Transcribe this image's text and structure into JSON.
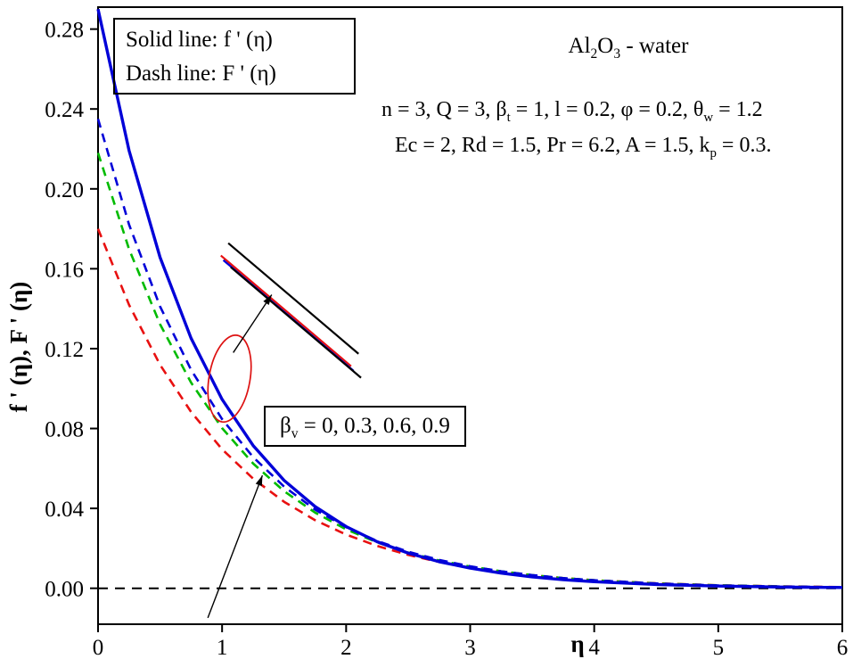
{
  "figure": {
    "background": "#ffffff"
  },
  "annotations": {
    "legend_line1": "Solid line: f ' (η)",
    "legend_line2": "Dash  line: F ' (η)",
    "fluid_label": "Al_{2}O_{3} - water",
    "params_line1": "n = 3, Q = 3, β_{t} = 1, l = 0.2, φ = 0.2, θ_{w} = 1.2",
    "params_line2": "Ec = 2, Rd = 1.5, Pr = 6.2, A = 1.5, k_{p} = 0.3.",
    "beta_label": "β_{v} = 0, 0.3, 0.6, 0.9"
  },
  "chart_data": {
    "type": "line",
    "title": "",
    "xlabel": "η",
    "ylabel": "f ' (η), F ' (η)",
    "x_range": [
      0,
      6
    ],
    "y_range": [
      -0.018,
      0.291
    ],
    "grid": false,
    "x_ticks": {
      "values": [
        0,
        1,
        2,
        3,
        4,
        5,
        6
      ],
      "labels": [
        "0",
        "1",
        "2",
        "3",
        "4",
        "5",
        "6"
      ]
    },
    "y_ticks": {
      "values": [
        0.0,
        0.04,
        0.08,
        0.12,
        0.16,
        0.2,
        0.24,
        0.28
      ],
      "labels": [
        "0.00",
        "0.04",
        "0.08",
        "0.12",
        "0.16",
        "0.20",
        "0.24",
        "0.28"
      ]
    },
    "x": [
      0,
      0.25,
      0.5,
      0.75,
      1,
      1.25,
      1.5,
      1.75,
      2,
      2.25,
      2.5,
      2.75,
      3,
      3.25,
      3.5,
      3.75,
      4,
      4.5,
      5,
      5.5,
      6
    ],
    "series": [
      {
        "name": "F-prime-dash-red",
        "legend": "F ' (η)",
        "style": "dash",
        "color": "#e81010",
        "values": [
          0.18,
          0.1419,
          0.1119,
          0.0883,
          0.0696,
          0.0549,
          0.0433,
          0.0341,
          0.0269,
          0.0212,
          0.0167,
          0.0132,
          0.0104,
          0.0082,
          0.0065,
          0.0051,
          0.004,
          0.0025,
          0.0015,
          0.001,
          0.0006
        ]
      },
      {
        "name": "F-prime-dash-green",
        "legend": "F ' (η)",
        "style": "dash",
        "color": "#00bb00",
        "values": [
          0.218,
          0.1698,
          0.1322,
          0.103,
          0.0802,
          0.0625,
          0.0486,
          0.0379,
          0.0295,
          0.023,
          0.0179,
          0.0139,
          0.0109,
          0.0085,
          0.0066,
          0.0051,
          0.004,
          0.0024,
          0.0015,
          0.0009,
          0.0005
        ]
      },
      {
        "name": "F-prime-dash-blue",
        "legend": "F ' (η)",
        "style": "dash",
        "color": "#0000d8",
        "values": [
          0.235,
          0.1821,
          0.1411,
          0.1094,
          0.0847,
          0.0657,
          0.0509,
          0.0394,
          0.0306,
          0.0237,
          0.0183,
          0.0142,
          0.011,
          0.0085,
          0.0066,
          0.0051,
          0.004,
          0.0024,
          0.0014,
          0.0009,
          0.0005
        ]
      },
      {
        "name": "f-prime-solid-blue",
        "legend": "f ' (η)",
        "style": "solid",
        "color": "#0000d8",
        "values": [
          0.29,
          0.2192,
          0.1657,
          0.1252,
          0.0946,
          0.0715,
          0.054,
          0.0409,
          0.0309,
          0.0233,
          0.0176,
          0.0133,
          0.0101,
          0.0076,
          0.0057,
          0.0043,
          0.0033,
          0.0019,
          0.0011,
          0.0006,
          0.0004
        ]
      }
    ],
    "zero_line": {
      "y": 0,
      "style": "dash",
      "color": "#000000"
    },
    "inset_segments": [
      {
        "color": "#000000",
        "x1": 1.05,
        "y1": 0.1728,
        "x2": 2.1,
        "y2": 0.1174
      },
      {
        "color": "#e81010",
        "x1": 0.99,
        "y1": 0.1666,
        "x2": 2.04,
        "y2": 0.1112
      },
      {
        "color": "#0000d8",
        "x1": 1.01,
        "y1": 0.1643,
        "x2": 2.06,
        "y2": 0.1089
      },
      {
        "color": "#000000",
        "x1": 1.07,
        "y1": 0.1608,
        "x2": 2.12,
        "y2": 0.1054
      }
    ],
    "ellipse": {
      "cx": 1.06,
      "cy": 0.105,
      "rx": 0.165,
      "ry": 0.022,
      "rotate": 10,
      "color": "#dd1111"
    },
    "arrows": [
      {
        "x1": 1.09,
        "y1": 0.118,
        "x2": 1.4,
        "y2": 0.147
      },
      {
        "x1": 0.885,
        "y1": -0.0148,
        "x2": 1.325,
        "y2": 0.0565
      }
    ]
  }
}
